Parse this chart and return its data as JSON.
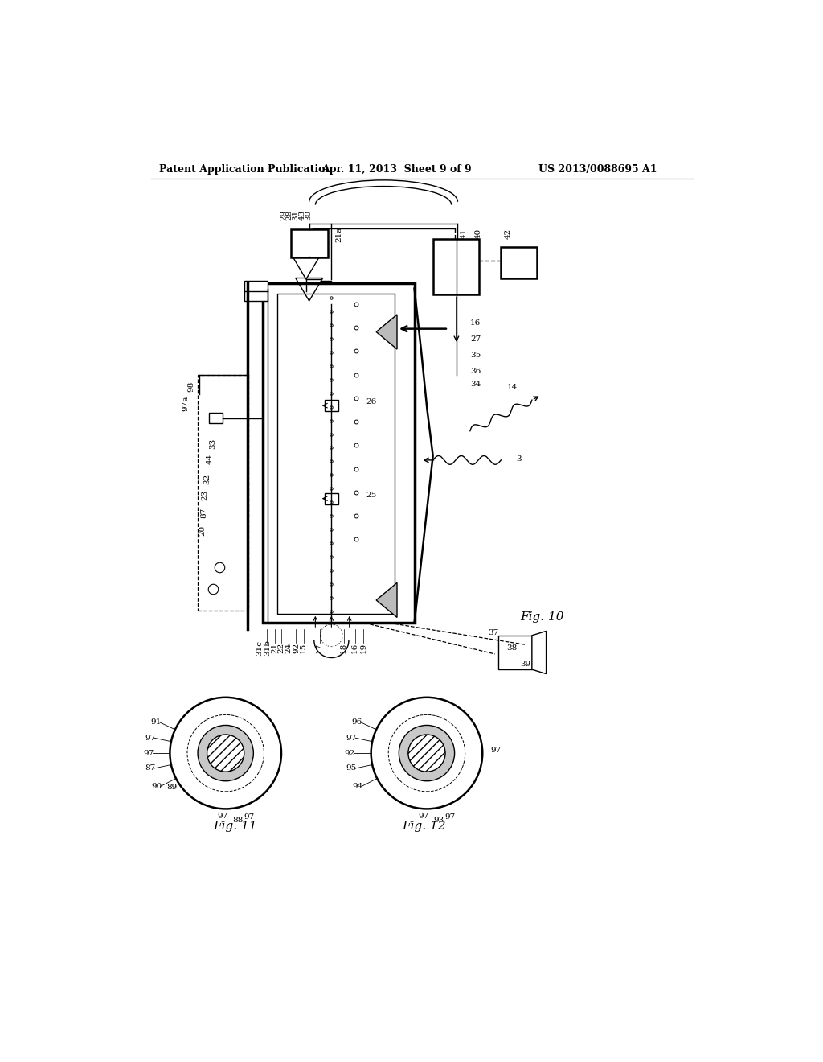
{
  "title_left": "Patent Application Publication",
  "title_center": "Apr. 11, 2013  Sheet 9 of 9",
  "title_right": "US 2013/0088695 A1",
  "bg_color": "#ffffff",
  "fig_width": 10.24,
  "fig_height": 13.2
}
